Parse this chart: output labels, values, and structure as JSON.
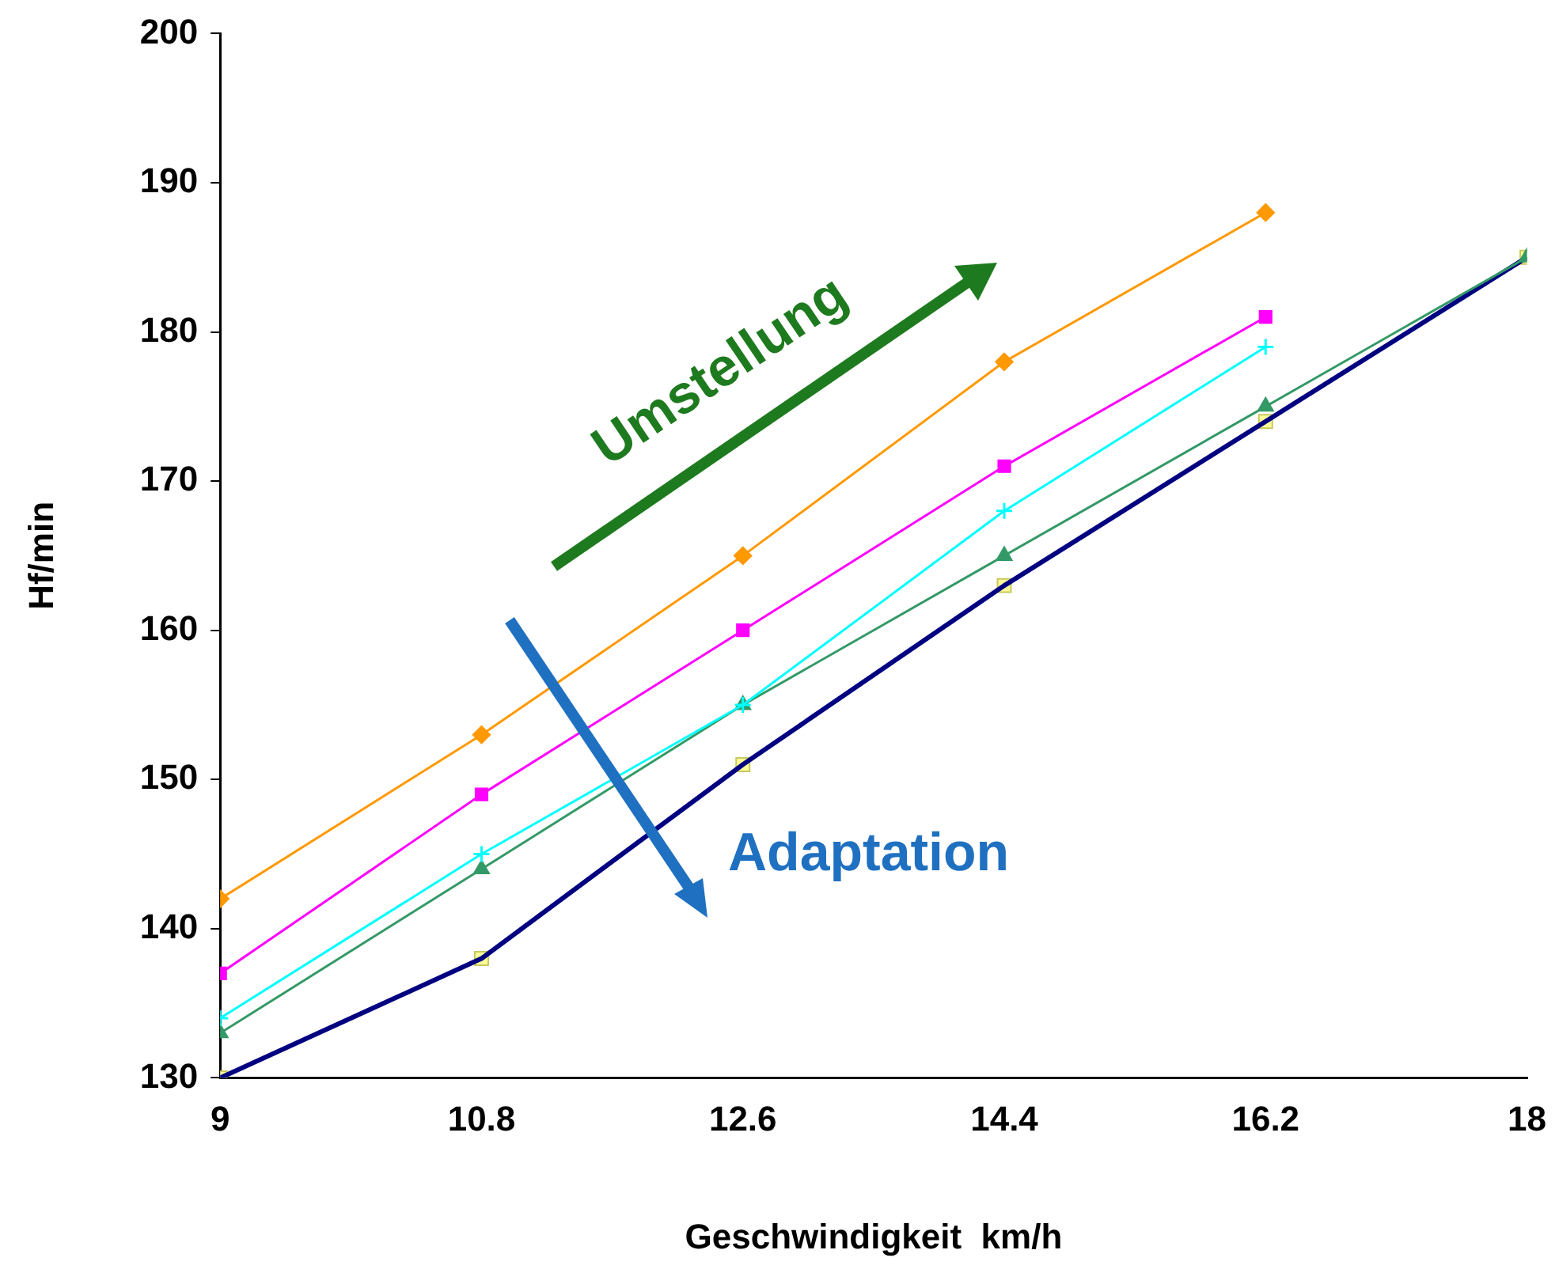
{
  "chart_data": {
    "type": "line",
    "xlabel": "Geschwindigkeit  km/h",
    "ylabel": "Hf/min",
    "x": [
      9,
      10.8,
      12.6,
      14.4,
      16.2,
      18
    ],
    "xlim": [
      9,
      18
    ],
    "xticks": [
      9,
      10.8,
      12.6,
      14.4,
      16.2,
      18
    ],
    "ylim": [
      130,
      200
    ],
    "yticks": [
      130,
      140,
      150,
      160,
      170,
      180,
      190,
      200
    ],
    "series": [
      {
        "color": "#ff9900",
        "marker": "diamond",
        "values": [
          142,
          153,
          165,
          178,
          188,
          null
        ]
      },
      {
        "color": "#ff00ff",
        "marker": "square",
        "values": [
          137,
          149,
          160,
          171,
          181,
          null
        ]
      },
      {
        "color": "#00ffff",
        "marker": "cross",
        "values": [
          134,
          145,
          155,
          168,
          179,
          null
        ]
      },
      {
        "color": "#339966",
        "marker": "triangle",
        "values": [
          133,
          144,
          155,
          165,
          175,
          185
        ]
      },
      {
        "color": "#000080",
        "marker": "none",
        "values": [
          130,
          138,
          151,
          163,
          174,
          185
        ]
      },
      {
        "type": "scatter",
        "color": "#ffff99",
        "marker": "square",
        "values": [
          130,
          138,
          151,
          163,
          174,
          185
        ]
      }
    ],
    "annotations": [
      "Umstellung",
      "Adaptation"
    ]
  }
}
